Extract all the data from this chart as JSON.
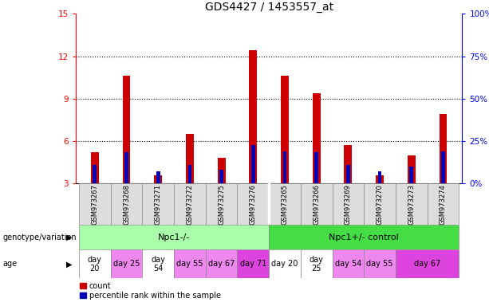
{
  "title": "GDS4427 / 1453557_at",
  "samples": [
    "GSM973267",
    "GSM973268",
    "GSM973271",
    "GSM973272",
    "GSM973275",
    "GSM973276",
    "GSM973265",
    "GSM973266",
    "GSM973269",
    "GSM973270",
    "GSM973273",
    "GSM973274"
  ],
  "count_values": [
    5.2,
    10.6,
    3.6,
    6.5,
    4.8,
    12.4,
    10.6,
    9.4,
    5.7,
    3.6,
    5.0,
    7.9
  ],
  "percentile_values": [
    4.3,
    5.2,
    3.85,
    4.3,
    4.0,
    5.7,
    5.3,
    5.2,
    4.3,
    3.85,
    4.2,
    5.3
  ],
  "ylim_min": 3,
  "ylim_max": 15,
  "yticks_left": [
    3,
    6,
    9,
    12,
    15
  ],
  "yticks_right": [
    0,
    25,
    50,
    75,
    100
  ],
  "bar_color": "#cc0000",
  "pct_color": "#0000bb",
  "red_bar_width": 0.25,
  "blue_bar_width": 0.12,
  "genotype_groups": [
    {
      "label": "Npc1-/-",
      "start": 0,
      "end": 6,
      "color": "#aaffaa"
    },
    {
      "label": "Npc1+/- control",
      "start": 6,
      "end": 12,
      "color": "#44dd44"
    }
  ],
  "age_spans": [
    {
      "label": "day\n20",
      "start": 0,
      "end": 1,
      "color": "#ffffff"
    },
    {
      "label": "day 25",
      "start": 1,
      "end": 2,
      "color": "#ee88ee"
    },
    {
      "label": "day\n54",
      "start": 2,
      "end": 3,
      "color": "#ffffff"
    },
    {
      "label": "day 55",
      "start": 3,
      "end": 4,
      "color": "#ee88ee"
    },
    {
      "label": "day 67",
      "start": 4,
      "end": 5,
      "color": "#ee88ee"
    },
    {
      "label": "day 71",
      "start": 5,
      "end": 6,
      "color": "#dd44dd"
    },
    {
      "label": "day 20",
      "start": 6,
      "end": 7,
      "color": "#ffffff"
    },
    {
      "label": "day\n25",
      "start": 7,
      "end": 8,
      "color": "#ffffff"
    },
    {
      "label": "day 54",
      "start": 8,
      "end": 9,
      "color": "#ee88ee"
    },
    {
      "label": "day 55",
      "start": 9,
      "end": 10,
      "color": "#ee88ee"
    },
    {
      "label": "day 67",
      "start": 10,
      "end": 12,
      "color": "#dd44dd"
    }
  ],
  "legend_count_label": "count",
  "legend_pct_label": "percentile rank within the sample",
  "title_fontsize": 10,
  "tick_fontsize": 7.5,
  "sample_fontsize": 6,
  "annotation_fontsize": 8,
  "label_fontsize": 7,
  "age_fontsize": 7
}
